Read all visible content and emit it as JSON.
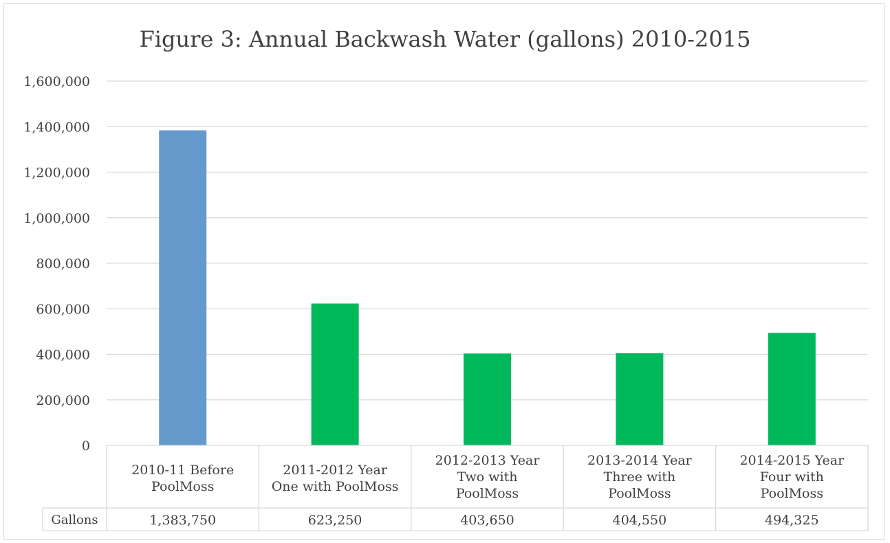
{
  "chart_data": {
    "type": "bar",
    "title": "Figure 3: Annual Backwash Water (gallons) 2010-2015",
    "categories": [
      [
        "2010-11 Before",
        "PoolMoss"
      ],
      [
        "2011-2012 Year",
        "One with PoolMoss"
      ],
      [
        "2012-2013 Year",
        "Two with",
        "PoolMoss"
      ],
      [
        "2013-2014 Year",
        "Three with",
        "PoolMoss"
      ],
      [
        "2014-2015 Year",
        "Four with",
        "PoolMoss"
      ]
    ],
    "series": [
      {
        "name": "Gallons",
        "values": [
          1383750,
          623250,
          403650,
          404550,
          494325
        ],
        "labels": [
          "1,383,750",
          "623,250",
          "403,650",
          "404,550",
          "494,325"
        ]
      }
    ],
    "bar_colors": [
      "#6699cc",
      "#00b85c",
      "#00b85c",
      "#00b85c",
      "#00b85c"
    ],
    "ylim": [
      0,
      1600000
    ],
    "yticks": [
      0,
      200000,
      400000,
      600000,
      800000,
      1000000,
      1200000,
      1400000,
      1600000
    ],
    "ytick_labels": [
      "0",
      "200,000",
      "400,000",
      "600,000",
      "800,000",
      "1,000,000",
      "1,200,000",
      "1,400,000",
      "1,600,000"
    ],
    "grid": true,
    "data_table": true,
    "grid_color": "#d9d9d9",
    "text_color": "#404040"
  }
}
